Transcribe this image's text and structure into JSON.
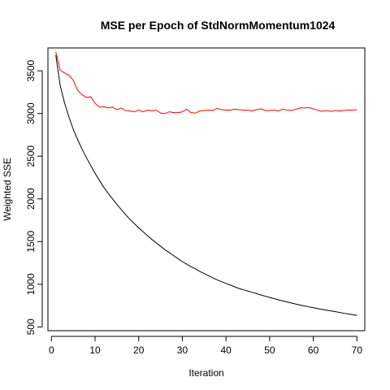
{
  "chart_data": {
    "type": "line",
    "title": "MSE per Epoch of StdNormMomentum1024",
    "xlabel": "Iteration",
    "ylabel": "Weighted SSE",
    "xlim": [
      -0.8,
      71.8
    ],
    "ylim": [
      456,
      3768
    ],
    "xticks": [
      0,
      10,
      20,
      30,
      40,
      50,
      60,
      70
    ],
    "yticks": [
      500,
      1000,
      1500,
      2000,
      2500,
      3000,
      3500
    ],
    "grid": false,
    "legend": "none",
    "series": [
      {
        "color": "#000000",
        "x": [
          1,
          2,
          3,
          4,
          5,
          6,
          7,
          8,
          9,
          10,
          11,
          12,
          13,
          14,
          15,
          16,
          17,
          18,
          19,
          20,
          21,
          22,
          23,
          24,
          25,
          26,
          27,
          28,
          29,
          30,
          31,
          32,
          33,
          34,
          35,
          36,
          37,
          38,
          39,
          40,
          41,
          42,
          43,
          44,
          45,
          46,
          47,
          48,
          49,
          50,
          51,
          52,
          53,
          54,
          55,
          56,
          57,
          58,
          59,
          60,
          61,
          62,
          63,
          64,
          65,
          66,
          67,
          68,
          69,
          70
        ],
        "y": [
          3685,
          3330,
          3125,
          2960,
          2815,
          2695,
          2585,
          2485,
          2390,
          2300,
          2215,
          2135,
          2065,
          2000,
          1935,
          1875,
          1815,
          1760,
          1710,
          1660,
          1615,
          1570,
          1525,
          1485,
          1445,
          1405,
          1370,
          1335,
          1300,
          1265,
          1235,
          1205,
          1180,
          1150,
          1125,
          1100,
          1075,
          1050,
          1030,
          1010,
          990,
          970,
          950,
          935,
          920,
          905,
          890,
          875,
          860,
          845,
          832,
          818,
          805,
          793,
          780,
          768,
          756,
          745,
          735,
          725,
          715,
          705,
          696,
          688,
          680,
          670,
          660,
          652,
          644,
          636
        ]
      },
      {
        "color": "#ff0000",
        "x": [
          1,
          2,
          3,
          4,
          5,
          6,
          7,
          8,
          9,
          10,
          11,
          12,
          13,
          14,
          15,
          16,
          17,
          18,
          19,
          20,
          21,
          22,
          23,
          24,
          25,
          26,
          27,
          28,
          29,
          30,
          31,
          32,
          33,
          34,
          35,
          36,
          37,
          38,
          39,
          40,
          41,
          42,
          43,
          44,
          45,
          46,
          47,
          48,
          49,
          50,
          51,
          52,
          53,
          54,
          55,
          56,
          57,
          58,
          59,
          60,
          61,
          62,
          63,
          64,
          65,
          66,
          67,
          68,
          69,
          70
        ],
        "y": [
          3720,
          3510,
          3475,
          3450,
          3390,
          3270,
          3220,
          3190,
          3195,
          3120,
          3075,
          3080,
          3065,
          3075,
          3045,
          3065,
          3035,
          3030,
          3020,
          3040,
          3020,
          3040,
          3030,
          3040,
          3005,
          3000,
          3020,
          3010,
          3010,
          3020,
          3050,
          3010,
          3005,
          3030,
          3035,
          3040,
          3035,
          3060,
          3045,
          3040,
          3040,
          3050,
          3045,
          3040,
          3040,
          3030,
          3045,
          3055,
          3035,
          3035,
          3040,
          3030,
          3050,
          3040,
          3035,
          3050,
          3065,
          3065,
          3070,
          3055,
          3040,
          3025,
          3035,
          3025,
          3035,
          3030,
          3035,
          3040,
          3040,
          3045
        ]
      }
    ]
  }
}
